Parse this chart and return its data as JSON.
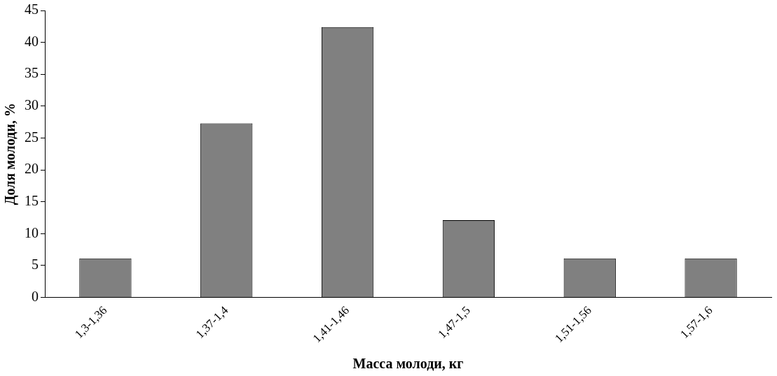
{
  "chart_data": {
    "type": "bar",
    "xlabel": "Масса молоди, кг",
    "ylabel": "Доля молоди, %",
    "categories": [
      "1,3-1,36",
      "1,37-1,4",
      "1,41-1,46",
      "1,47-1,5",
      "1,51-1,56",
      "1,57-1,6"
    ],
    "values": [
      6.1,
      27.3,
      42.4,
      12.1,
      6.1,
      6.1
    ],
    "color": "#808080",
    "ylim": [
      0,
      45
    ],
    "yticks": [
      0,
      5,
      10,
      15,
      20,
      25,
      30,
      35,
      40,
      45
    ],
    "grid": false,
    "legend": false
  }
}
